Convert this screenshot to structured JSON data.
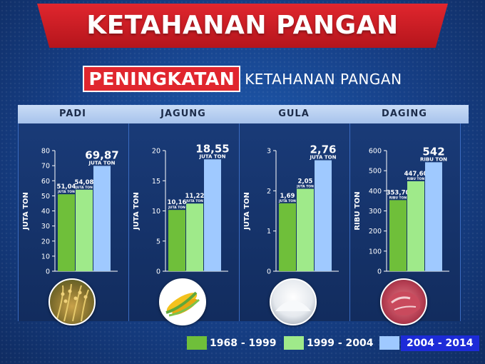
{
  "header": {
    "title": "KETAHANAN PANGAN"
  },
  "subheader": {
    "highlight": "PENINGKATAN",
    "rest": "KETAHANAN PANGAN"
  },
  "colors": {
    "p1": "#6fbf3a",
    "p2": "#9fea8a",
    "p3": "#9fc9ff",
    "banner": "#e0262e"
  },
  "legend": [
    {
      "label": "1968 - 1999",
      "color": "#6fbf3a"
    },
    {
      "label": "1999 - 2004",
      "color": "#9fea8a"
    },
    {
      "label": "2004 - 2014",
      "color": "#9fc9ff"
    }
  ],
  "chart_data": [
    {
      "type": "bar",
      "title": "PADI",
      "ylabel": "JUTA TON",
      "ylim": [
        0,
        80
      ],
      "yticks": [
        0,
        10,
        20,
        30,
        40,
        50,
        60,
        70,
        80
      ],
      "values": [
        51.04,
        54.08,
        69.87
      ],
      "value_labels": [
        "51,04",
        "54,08",
        "69,87"
      ],
      "unit": "JUTA TON",
      "image_icon": "rice-icon"
    },
    {
      "type": "bar",
      "title": "JAGUNG",
      "ylabel": "JUTA TON",
      "ylim": [
        0,
        20
      ],
      "yticks": [
        0,
        5,
        10,
        15,
        20
      ],
      "values": [
        10.16,
        11.22,
        18.55
      ],
      "value_labels": [
        "10,16",
        "11,22",
        "18,55"
      ],
      "unit": "JUTA TON",
      "image_icon": "corn-icon"
    },
    {
      "type": "bar",
      "title": "GULA",
      "ylabel": "JUTA TON",
      "ylim": [
        0,
        3
      ],
      "yticks": [
        0,
        1,
        2,
        3
      ],
      "values": [
        1.69,
        2.05,
        2.76
      ],
      "value_labels": [
        "1,69",
        "2,05",
        "2,76"
      ],
      "unit": "JUTA TON",
      "image_icon": "sugar-icon"
    },
    {
      "type": "bar",
      "title": "DAGING",
      "ylabel": "RIBU TON",
      "ylim": [
        0,
        600
      ],
      "yticks": [
        0,
        100,
        200,
        300,
        400,
        500,
        600
      ],
      "values": [
        353.7,
        447.6,
        542
      ],
      "value_labels": [
        "353,70",
        "447,60",
        "542"
      ],
      "unit": "RIBU TON",
      "image_icon": "meat-icon"
    }
  ]
}
